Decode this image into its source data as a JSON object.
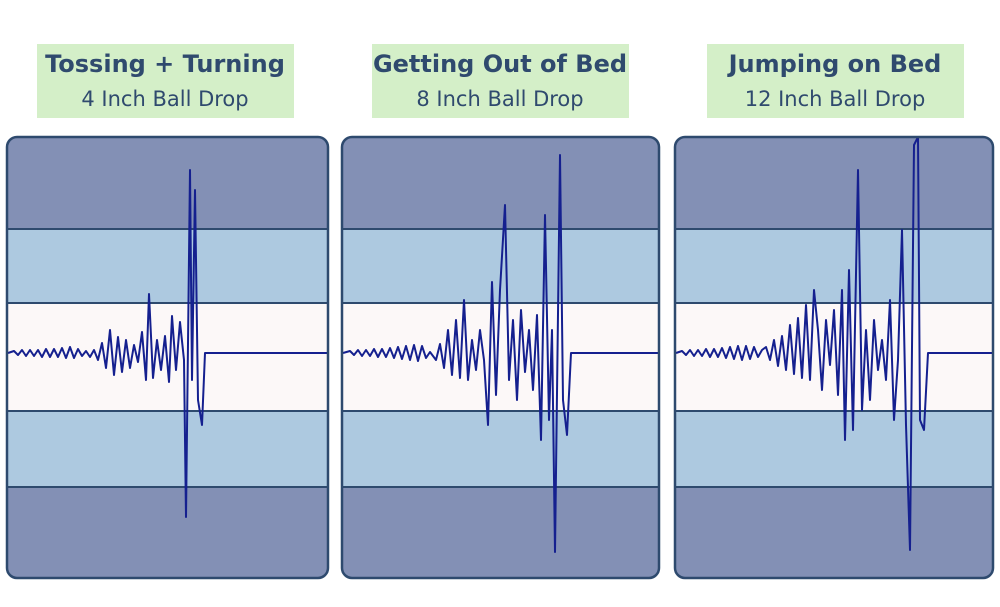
{
  "panels": [
    {
      "title": "Tossing + Turning",
      "subtitle": "4 Inch Ball Drop"
    },
    {
      "title": "Getting Out of Bed",
      "subtitle": "8 Inch Ball Drop"
    },
    {
      "title": "Jumping on Bed",
      "subtitle": "12 Inch Ball Drop"
    }
  ]
}
